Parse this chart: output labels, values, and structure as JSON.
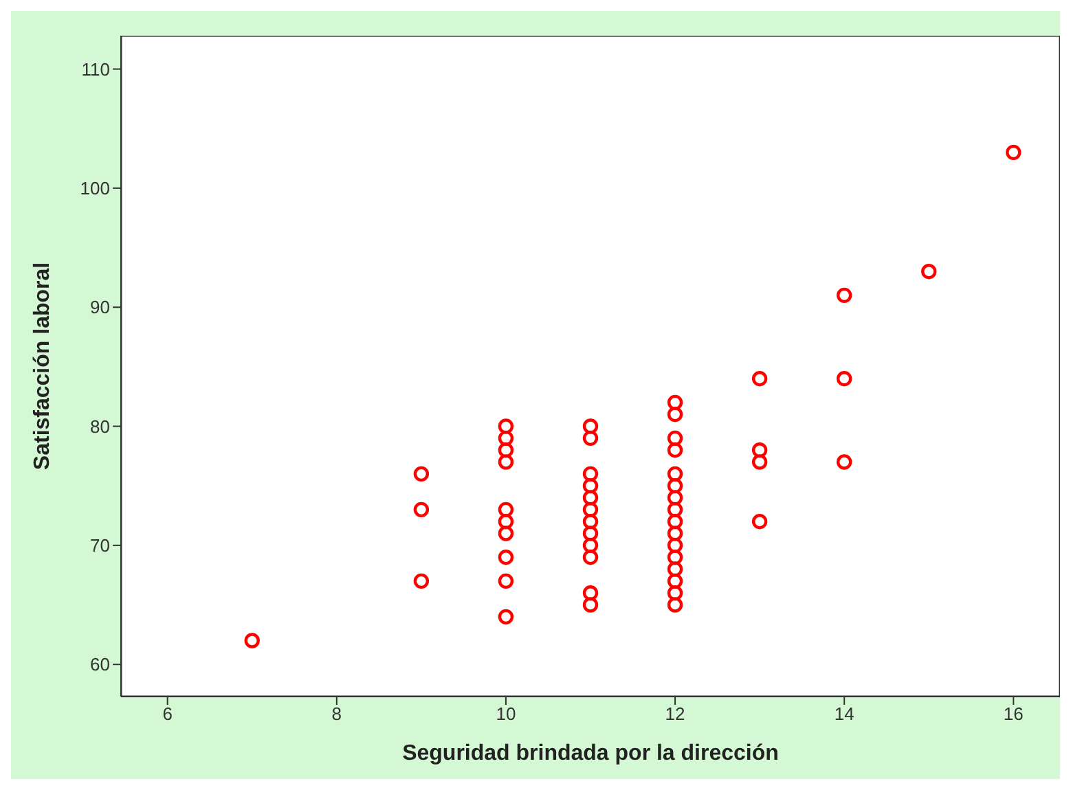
{
  "chart_data": {
    "type": "scatter",
    "xlabel": "Seguridad brindada por la dirección",
    "ylabel": "Satisfacción laboral",
    "x": [
      7,
      9,
      9,
      9,
      10,
      10,
      10,
      10,
      10,
      10,
      10,
      10,
      10,
      10,
      11,
      11,
      11,
      11,
      11,
      11,
      11,
      11,
      11,
      11,
      11,
      11,
      12,
      12,
      12,
      12,
      12,
      12,
      12,
      12,
      12,
      12,
      12,
      12,
      12,
      12,
      12,
      12,
      13,
      13,
      13,
      13,
      14,
      14,
      14,
      15,
      16
    ],
    "series": [
      {
        "color": "#ff0000",
        "values": [
          62,
          76,
          73,
          67,
          80,
          79,
          78,
          77,
          73,
          72,
          71,
          69,
          67,
          64,
          80,
          79,
          76,
          75,
          74,
          73,
          72,
          71,
          70,
          69,
          66,
          65,
          82,
          81,
          79,
          78,
          76,
          75,
          74,
          73,
          72,
          71,
          70,
          69,
          68,
          67,
          66,
          65,
          84,
          78,
          77,
          72,
          91,
          84,
          77,
          93,
          103
        ]
      }
    ],
    "xlim": [
      5.45,
      16.55
    ],
    "xticks": [
      6,
      8,
      10,
      12,
      14,
      16
    ],
    "ylim": [
      57.3,
      112.8
    ],
    "yticks": [
      60,
      70,
      80,
      90,
      100,
      110
    ],
    "grid": false,
    "legend": false,
    "marker": "circle"
  }
}
